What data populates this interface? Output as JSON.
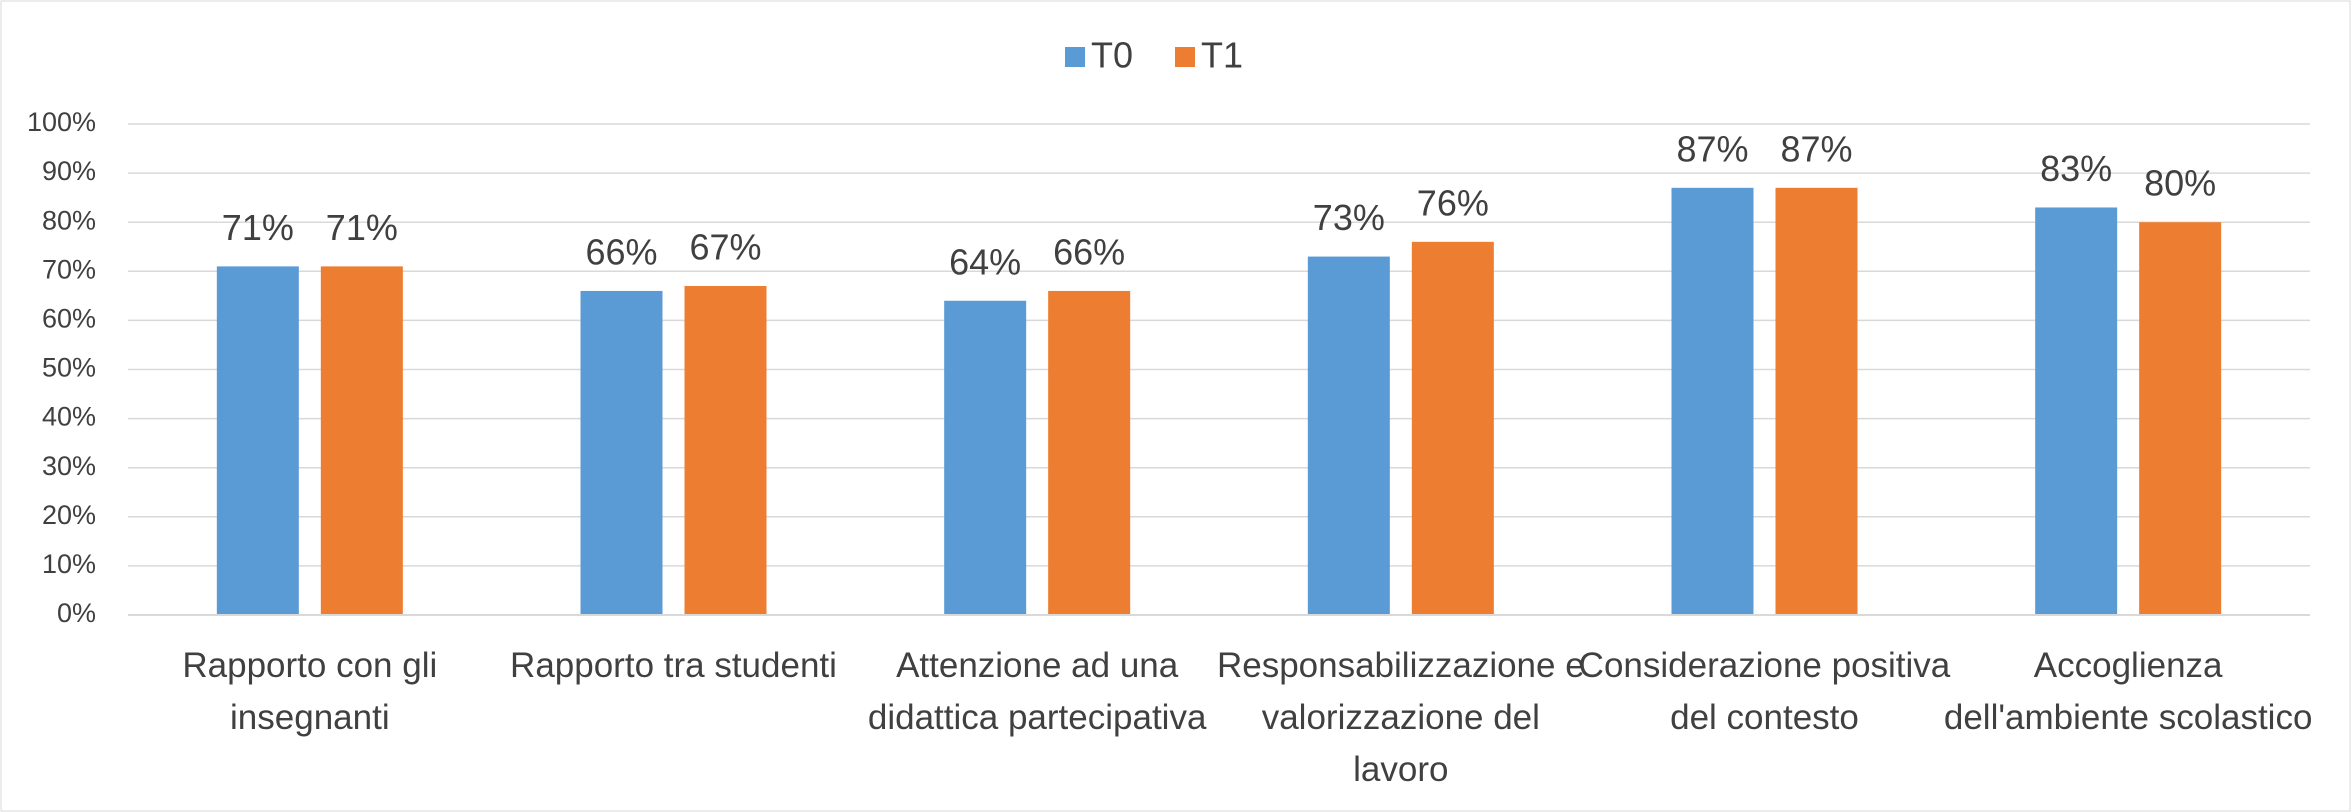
{
  "chart_data": {
    "type": "bar",
    "categories": [
      "Rapporto con gli insegnanti",
      "Rapporto tra studenti",
      "Attenzione ad una didattica partecipativa",
      "Responsabilizzazione e valorizzazione del lavoro",
      "Considerazione positiva del contesto",
      "Accoglienza dell'ambiente scolastico"
    ],
    "series": [
      {
        "name": "T0",
        "color": "#5b9bd5",
        "values": [
          71,
          66,
          64,
          73,
          87,
          83
        ],
        "value_labels": [
          "71%",
          "66%",
          "64%",
          "73%",
          "87%",
          "83%"
        ]
      },
      {
        "name": "T1",
        "color": "#ed7d31",
        "values": [
          71,
          67,
          66,
          76,
          87,
          80
        ],
        "value_labels": [
          "71%",
          "67%",
          "66%",
          "76%",
          "87%",
          "80%"
        ]
      }
    ],
    "ylim": [
      0,
      100
    ],
    "yticks": [
      {
        "value": 0,
        "label": "0%"
      },
      {
        "value": 10,
        "label": "10%"
      },
      {
        "value": 20,
        "label": "20%"
      },
      {
        "value": 30,
        "label": "30%"
      },
      {
        "value": 40,
        "label": "40%"
      },
      {
        "value": 50,
        "label": "50%"
      },
      {
        "value": 60,
        "label": "60%"
      },
      {
        "value": 70,
        "label": "70%"
      },
      {
        "value": 80,
        "label": "80%"
      },
      {
        "value": 90,
        "label": "90%"
      },
      {
        "value": 100,
        "label": "100%"
      }
    ],
    "grid": true,
    "legend": "top"
  }
}
